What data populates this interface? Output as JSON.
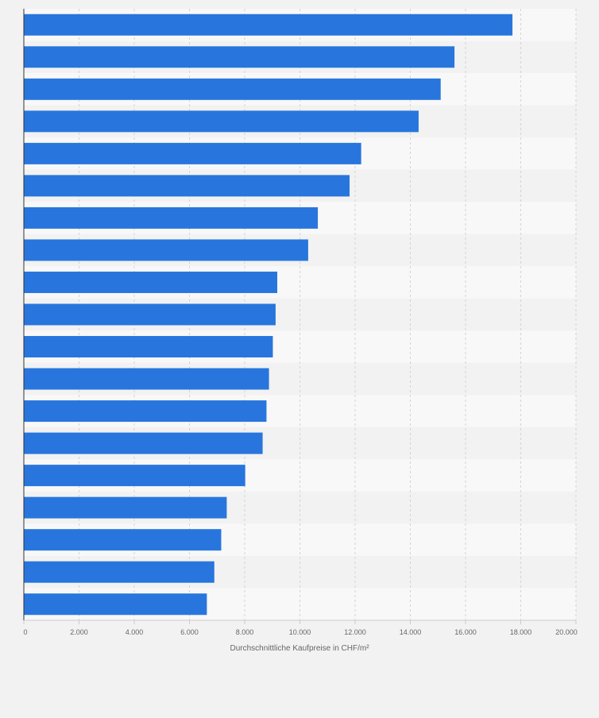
{
  "chart_data": {
    "type": "bar",
    "orientation": "horizontal",
    "title": "",
    "xlabel": "Durchschnittliche Kaufpreise in CHF/m²",
    "ylabel": "",
    "xlim": [
      0,
      20000
    ],
    "x_ticks": [
      0,
      2000,
      4000,
      6000,
      8000,
      10000,
      12000,
      14000,
      16000,
      18000,
      20000
    ],
    "x_tick_labels": [
      "0",
      "2.000",
      "4.000",
      "6.000",
      "8.000",
      "10.000",
      "12.000",
      "14.000",
      "16.000",
      "18.000",
      "20.000"
    ],
    "values": [
      17700,
      15600,
      15100,
      14300,
      12220,
      11800,
      10650,
      10300,
      9180,
      9120,
      9020,
      8880,
      8790,
      8650,
      8020,
      7350,
      7150,
      6900,
      6630
    ],
    "grid": true,
    "legend": "none",
    "colors": {
      "bar": "#2876dd",
      "grid": "#d4d4d4",
      "axis": "#333333",
      "tick_label": "#666666",
      "band_light": "#f8f8f8",
      "band_dark": "#f2f2f2"
    }
  }
}
